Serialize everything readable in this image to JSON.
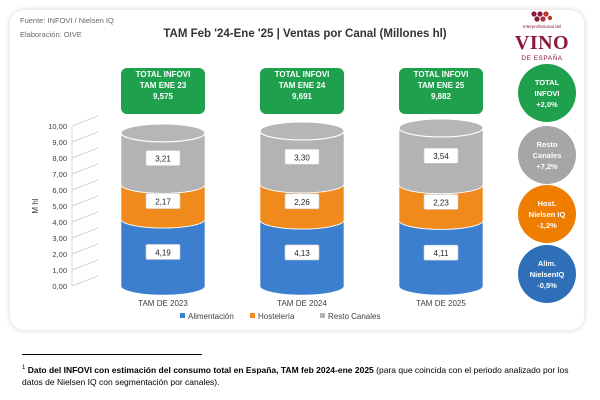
{
  "header": {
    "source_line1": "Fuente: INFOVI / Nielsen IQ",
    "source_line2": "Elaboración: OIVE",
    "title": "TAM Feb '24-Ene '25 | Ventas por Canal (Millones hl)"
  },
  "logo": {
    "small": "Interprofesional del",
    "main": "VINO",
    "sub": "DE ESPAÑA",
    "color": "#8b1a3a"
  },
  "totals": [
    {
      "line1": "TOTAL INFOVI",
      "line2": "TAM ENE 23",
      "value": "9,575"
    },
    {
      "line1": "TOTAL INFOVI",
      "line2": "TAM  ENE 24",
      "value": "9,691"
    },
    {
      "line1": "TOTAL INFOVI",
      "line2": "TAM ENE 25",
      "value": "9,882"
    }
  ],
  "circles": [
    {
      "line1": "TOTAL",
      "line2": "INFOVI",
      "line3": "+2,0%",
      "color": "#1ea04c"
    },
    {
      "line1": "Resto",
      "line2": "Canales",
      "line3": "+7,2%",
      "color": "#a6a6a6"
    },
    {
      "line1": "Host.",
      "line2": "Nielsen IQ",
      "line3": "-1,2%",
      "color": "#ef7d00"
    },
    {
      "line1": "Alim.",
      "line2": "NielsenIQ",
      "line3": "-0,5%",
      "color": "#2f6fb7"
    }
  ],
  "footnote": {
    "marker": "1",
    "bold": "Dato del INFOVI con estimación del consumo total en España, TAM feb 2024-ene 2025",
    "rest": " (para que coincida con el periodo analizado por los datos de Nielsen IQ con segmentación por canales)."
  },
  "chart_data": {
    "type": "bar",
    "stacked": true,
    "title": "TAM Feb '24-Ene '25 | Ventas por Canal (Millones hl)",
    "ylabel": "M hl",
    "xlabel": "",
    "ylim": [
      0,
      10
    ],
    "yticks": [
      "0,00",
      "1,00",
      "2,00",
      "3,00",
      "4,00",
      "5,00",
      "6,00",
      "7,00",
      "8,00",
      "9,00",
      "10,00"
    ],
    "categories": [
      "TAM DE 2023",
      "TAM DE 2024",
      "TAM DE 2025"
    ],
    "series": [
      {
        "name": "Alimentación",
        "values": [
          4.19,
          4.13,
          4.11
        ],
        "labels": [
          "4,19",
          "4,13",
          "4,11"
        ],
        "color": "#3d7fcf"
      },
      {
        "name": "Hostelería",
        "values": [
          2.17,
          2.26,
          2.23
        ],
        "labels": [
          "2,17",
          "2,26",
          "2,23"
        ],
        "color": "#f08a1c"
      },
      {
        "name": "Resto Canales",
        "values": [
          3.21,
          3.3,
          3.54
        ],
        "labels": [
          "3,21",
          "3,30",
          "3,54"
        ],
        "color": "#b3b3b3"
      }
    ],
    "legend_position": "bottom",
    "grid": false
  }
}
